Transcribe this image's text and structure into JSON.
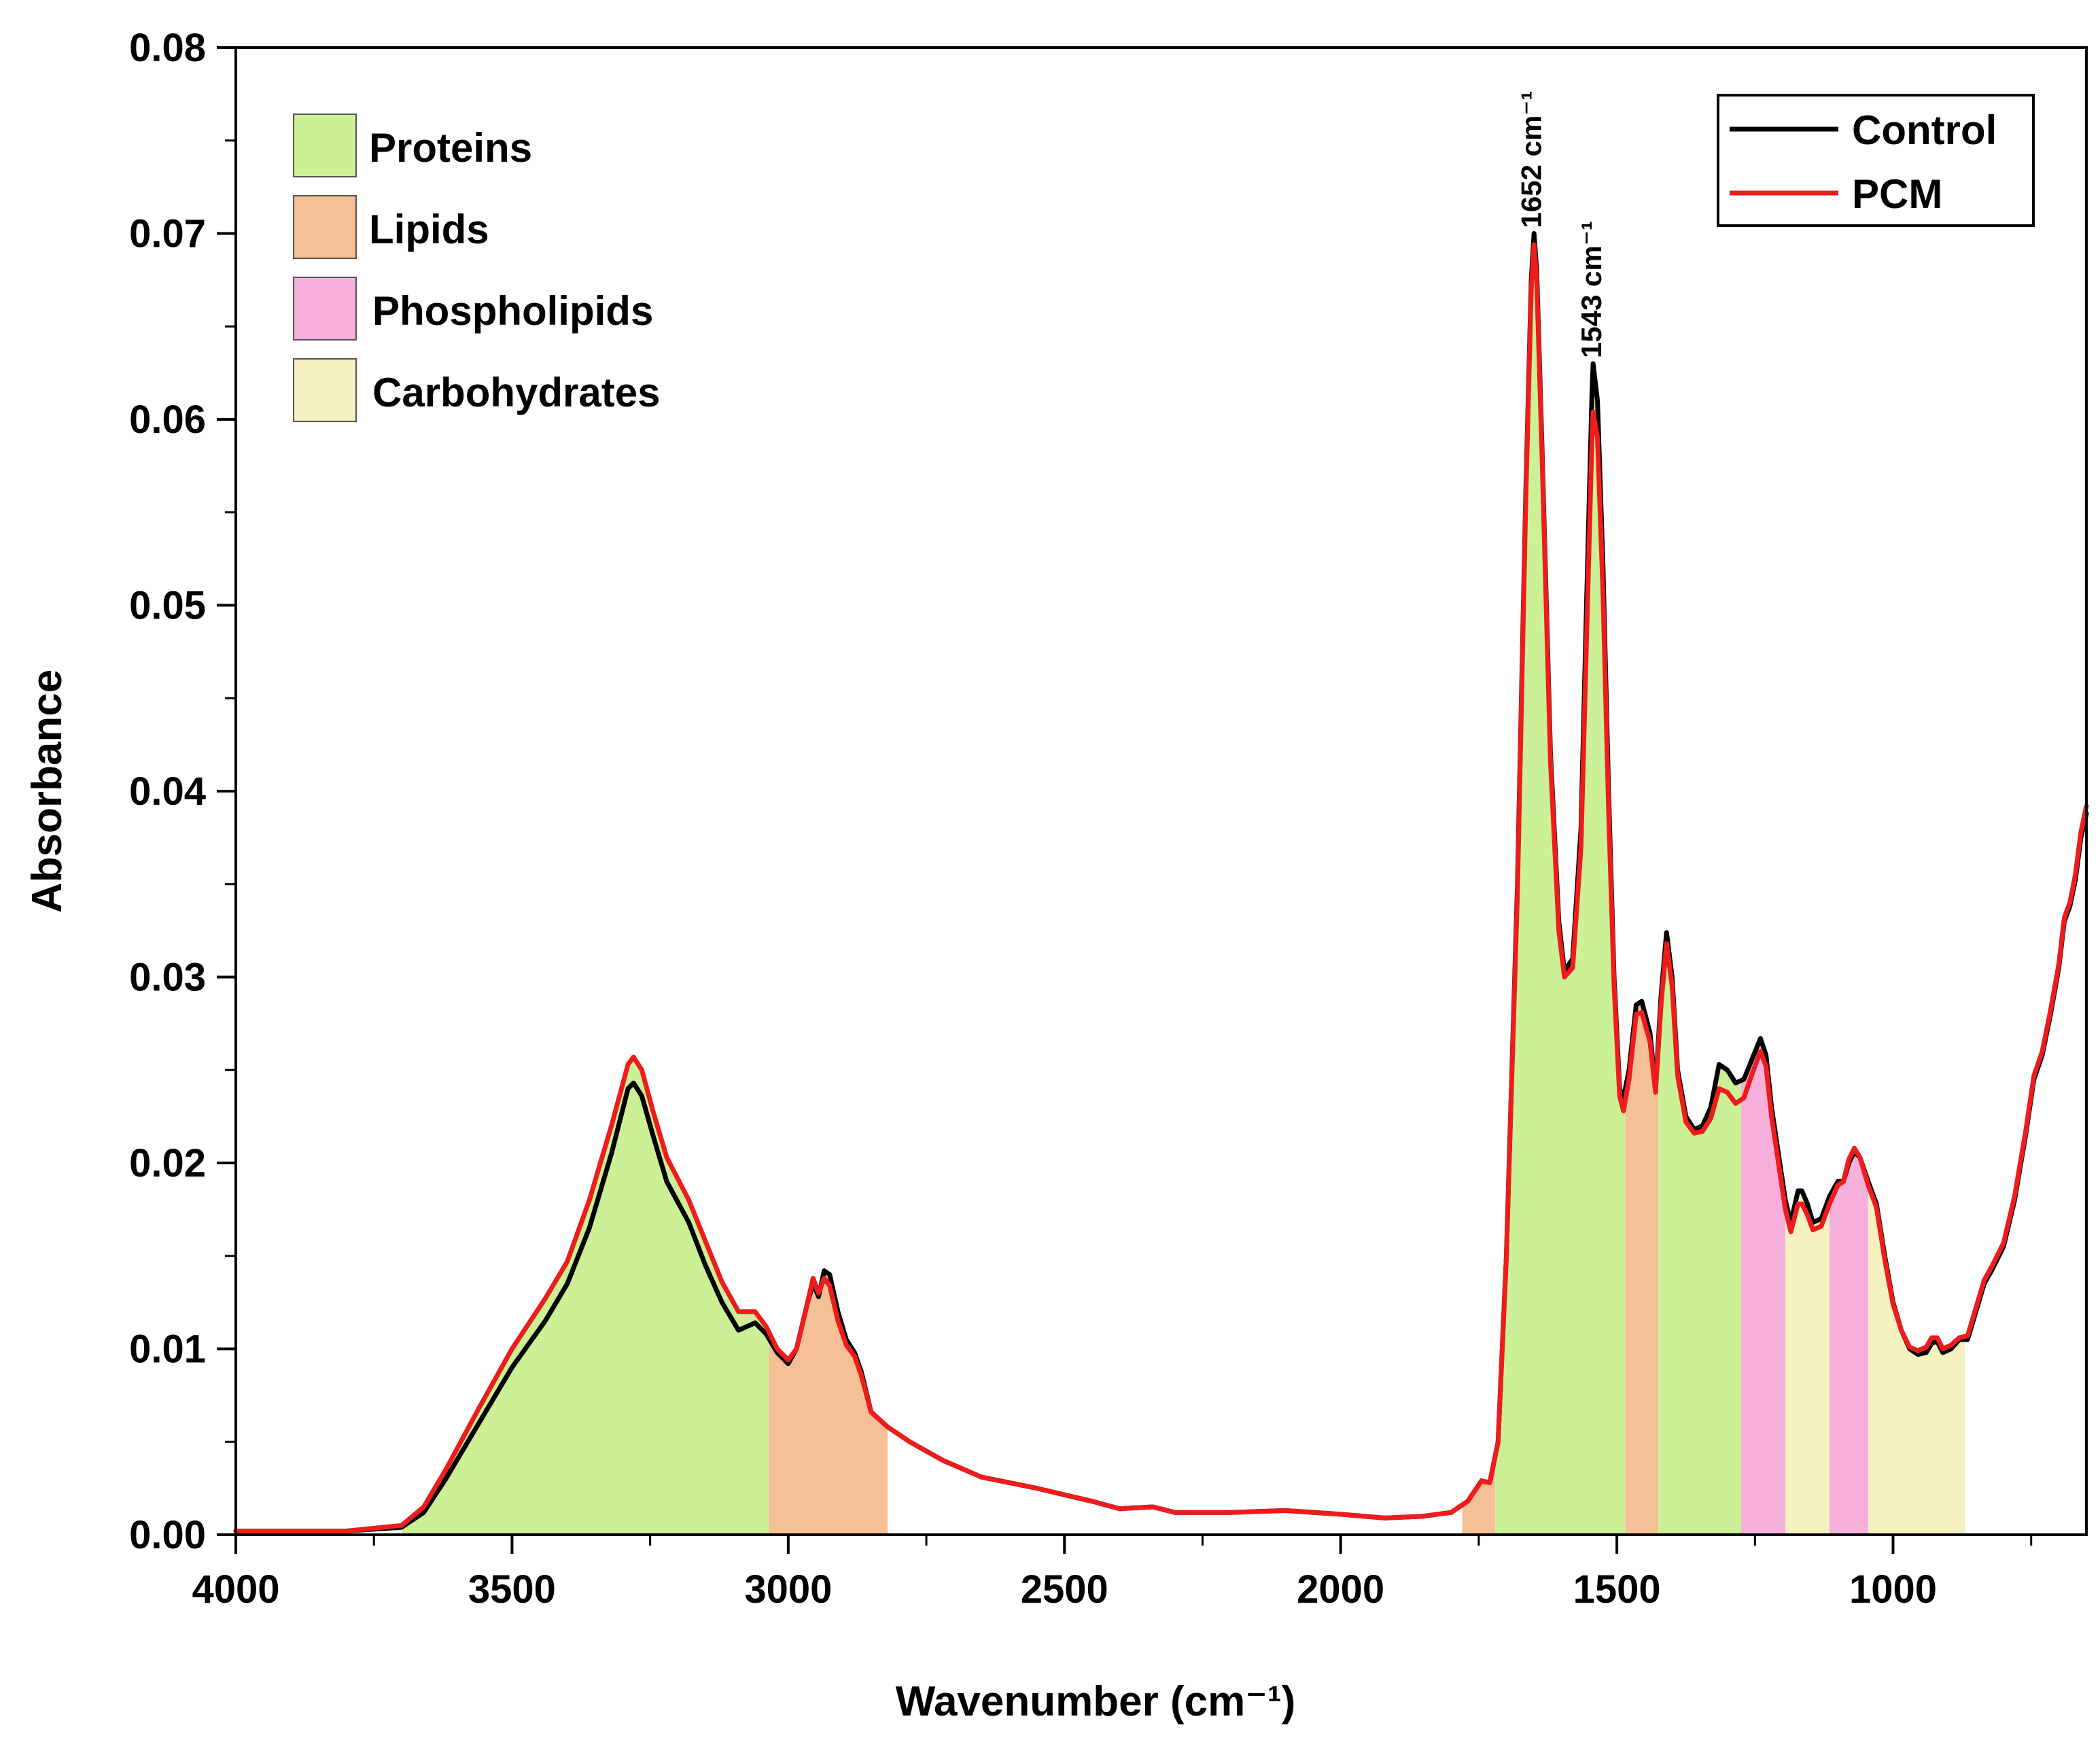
{
  "chart_data": {
    "type": "line",
    "title": "",
    "xlabel": "Wavenumber (cm⁻¹)",
    "ylabel": "Absorbance",
    "xlim": [
      4000,
      650
    ],
    "ylim": [
      0,
      0.08
    ],
    "xticks": [
      4000,
      3500,
      3000,
      2500,
      2000,
      1500,
      1000
    ],
    "xtick_labels": [
      "4000",
      "3500",
      "3000",
      "2500",
      "2000",
      "1500",
      "1000"
    ],
    "yticks": [
      0,
      0.01,
      0.02,
      0.03,
      0.04,
      0.05,
      0.06,
      0.07,
      0.08
    ],
    "ytick_labels": [
      "0.00",
      "0.01",
      "0.02",
      "0.03",
      "0.04",
      "0.05",
      "0.06",
      "0.07",
      "0.08"
    ],
    "x_inverted": true,
    "grid": false,
    "series": [
      {
        "name": "Control",
        "color": "#000000",
        "points": [
          [
            4000,
            0.0002
          ],
          [
            3800,
            0.0002
          ],
          [
            3700,
            0.0004
          ],
          [
            3660,
            0.0012
          ],
          [
            3620,
            0.003
          ],
          [
            3560,
            0.006
          ],
          [
            3500,
            0.009
          ],
          [
            3440,
            0.0115
          ],
          [
            3400,
            0.0135
          ],
          [
            3360,
            0.0165
          ],
          [
            3320,
            0.0205
          ],
          [
            3290,
            0.024
          ],
          [
            3280,
            0.0243
          ],
          [
            3265,
            0.0236
          ],
          [
            3245,
            0.0215
          ],
          [
            3220,
            0.019
          ],
          [
            3180,
            0.0168
          ],
          [
            3150,
            0.0145
          ],
          [
            3120,
            0.0125
          ],
          [
            3090,
            0.011
          ],
          [
            3060,
            0.0114
          ],
          [
            3040,
            0.0108
          ],
          [
            3020,
            0.0098
          ],
          [
            3000,
            0.0092
          ],
          [
            2985,
            0.01
          ],
          [
            2965,
            0.0125
          ],
          [
            2955,
            0.0135
          ],
          [
            2945,
            0.0128
          ],
          [
            2935,
            0.0142
          ],
          [
            2925,
            0.014
          ],
          [
            2910,
            0.012
          ],
          [
            2895,
            0.0105
          ],
          [
            2880,
            0.0098
          ],
          [
            2868,
            0.0088
          ],
          [
            2850,
            0.0066
          ],
          [
            2820,
            0.0058
          ],
          [
            2780,
            0.005
          ],
          [
            2720,
            0.004
          ],
          [
            2650,
            0.0031
          ],
          [
            2550,
            0.0025
          ],
          [
            2450,
            0.0018
          ],
          [
            2400,
            0.0014
          ],
          [
            2340,
            0.0015
          ],
          [
            2300,
            0.0012
          ],
          [
            2200,
            0.0012
          ],
          [
            2100,
            0.0013
          ],
          [
            2000,
            0.0011
          ],
          [
            1920,
            0.0009
          ],
          [
            1850,
            0.001
          ],
          [
            1800,
            0.0012
          ],
          [
            1770,
            0.0018
          ],
          [
            1745,
            0.0029
          ],
          [
            1730,
            0.0028
          ],
          [
            1715,
            0.005
          ],
          [
            1700,
            0.015
          ],
          [
            1680,
            0.035
          ],
          [
            1665,
            0.056
          ],
          [
            1655,
            0.0675
          ],
          [
            1650,
            0.07
          ],
          [
            1645,
            0.068
          ],
          [
            1635,
            0.058
          ],
          [
            1620,
            0.042
          ],
          [
            1605,
            0.033
          ],
          [
            1595,
            0.0303
          ],
          [
            1580,
            0.031
          ],
          [
            1565,
            0.038
          ],
          [
            1555,
            0.05
          ],
          [
            1545,
            0.0615
          ],
          [
            1543,
            0.063
          ],
          [
            1535,
            0.061
          ],
          [
            1525,
            0.052
          ],
          [
            1515,
            0.04
          ],
          [
            1505,
            0.03
          ],
          [
            1495,
            0.024
          ],
          [
            1488,
            0.0235
          ],
          [
            1478,
            0.025
          ],
          [
            1465,
            0.0285
          ],
          [
            1455,
            0.0287
          ],
          [
            1440,
            0.027
          ],
          [
            1430,
            0.024
          ],
          [
            1420,
            0.029
          ],
          [
            1410,
            0.0324
          ],
          [
            1400,
            0.03
          ],
          [
            1390,
            0.025
          ],
          [
            1375,
            0.0225
          ],
          [
            1360,
            0.0218
          ],
          [
            1345,
            0.022
          ],
          [
            1330,
            0.023
          ],
          [
            1315,
            0.0253
          ],
          [
            1300,
            0.025
          ],
          [
            1285,
            0.0243
          ],
          [
            1270,
            0.0245
          ],
          [
            1255,
            0.0256
          ],
          [
            1240,
            0.0267
          ],
          [
            1230,
            0.0258
          ],
          [
            1220,
            0.023
          ],
          [
            1210,
            0.021
          ],
          [
            1195,
            0.018
          ],
          [
            1185,
            0.0168
          ],
          [
            1172,
            0.0185
          ],
          [
            1165,
            0.0185
          ],
          [
            1155,
            0.0178
          ],
          [
            1145,
            0.0168
          ],
          [
            1130,
            0.017
          ],
          [
            1115,
            0.0182
          ],
          [
            1100,
            0.019
          ],
          [
            1090,
            0.019
          ],
          [
            1080,
            0.02
          ],
          [
            1070,
            0.0206
          ],
          [
            1060,
            0.0203
          ],
          [
            1045,
            0.019
          ],
          [
            1030,
            0.0178
          ],
          [
            1015,
            0.015
          ],
          [
            1000,
            0.0125
          ],
          [
            985,
            0.011
          ],
          [
            970,
            0.01
          ],
          [
            955,
            0.0097
          ],
          [
            940,
            0.0098
          ],
          [
            930,
            0.0103
          ],
          [
            920,
            0.0104
          ],
          [
            910,
            0.0098
          ],
          [
            895,
            0.01
          ],
          [
            880,
            0.0105
          ],
          [
            865,
            0.0105
          ],
          [
            850,
            0.012
          ],
          [
            835,
            0.0135
          ],
          [
            820,
            0.0143
          ],
          [
            800,
            0.0155
          ],
          [
            780,
            0.018
          ],
          [
            760,
            0.0215
          ],
          [
            745,
            0.0245
          ],
          [
            730,
            0.0258
          ],
          [
            715,
            0.028
          ],
          [
            700,
            0.0305
          ],
          [
            690,
            0.033
          ],
          [
            680,
            0.0338
          ],
          [
            670,
            0.0352
          ],
          [
            660,
            0.0375
          ],
          [
            650,
            0.0388
          ]
        ]
      },
      {
        "name": "PCM",
        "color": "#ee1c1c",
        "points": [
          [
            4000,
            0.0002
          ],
          [
            3800,
            0.0002
          ],
          [
            3700,
            0.0005
          ],
          [
            3660,
            0.0015
          ],
          [
            3620,
            0.0035
          ],
          [
            3560,
            0.0068
          ],
          [
            3500,
            0.01
          ],
          [
            3440,
            0.0127
          ],
          [
            3400,
            0.0147
          ],
          [
            3360,
            0.018
          ],
          [
            3320,
            0.022
          ],
          [
            3290,
            0.0253
          ],
          [
            3280,
            0.0257
          ],
          [
            3265,
            0.025
          ],
          [
            3245,
            0.0228
          ],
          [
            3220,
            0.0203
          ],
          [
            3180,
            0.018
          ],
          [
            3150,
            0.0158
          ],
          [
            3120,
            0.0136
          ],
          [
            3090,
            0.012
          ],
          [
            3060,
            0.012
          ],
          [
            3040,
            0.0112
          ],
          [
            3020,
            0.01
          ],
          [
            3000,
            0.0094
          ],
          [
            2985,
            0.01
          ],
          [
            2965,
            0.0125
          ],
          [
            2955,
            0.0138
          ],
          [
            2945,
            0.013
          ],
          [
            2935,
            0.0138
          ],
          [
            2925,
            0.0134
          ],
          [
            2910,
            0.0115
          ],
          [
            2895,
            0.0102
          ],
          [
            2880,
            0.0096
          ],
          [
            2868,
            0.0086
          ],
          [
            2850,
            0.0066
          ],
          [
            2820,
            0.0058
          ],
          [
            2780,
            0.005
          ],
          [
            2720,
            0.004
          ],
          [
            2650,
            0.0031
          ],
          [
            2550,
            0.0025
          ],
          [
            2450,
            0.0018
          ],
          [
            2400,
            0.0014
          ],
          [
            2340,
            0.0015
          ],
          [
            2300,
            0.0012
          ],
          [
            2200,
            0.0012
          ],
          [
            2100,
            0.0013
          ],
          [
            2000,
            0.0011
          ],
          [
            1920,
            0.0009
          ],
          [
            1850,
            0.001
          ],
          [
            1800,
            0.0012
          ],
          [
            1770,
            0.0018
          ],
          [
            1745,
            0.0029
          ],
          [
            1730,
            0.0028
          ],
          [
            1715,
            0.005
          ],
          [
            1700,
            0.015
          ],
          [
            1680,
            0.0345
          ],
          [
            1665,
            0.0555
          ],
          [
            1655,
            0.067
          ],
          [
            1650,
            0.0694
          ],
          [
            1645,
            0.0675
          ],
          [
            1635,
            0.0575
          ],
          [
            1620,
            0.0415
          ],
          [
            1605,
            0.0325
          ],
          [
            1595,
            0.03
          ],
          [
            1580,
            0.0305
          ],
          [
            1565,
            0.037
          ],
          [
            1555,
            0.048
          ],
          [
            1545,
            0.059
          ],
          [
            1543,
            0.0604
          ],
          [
            1535,
            0.059
          ],
          [
            1525,
            0.0505
          ],
          [
            1515,
            0.039
          ],
          [
            1505,
            0.0295
          ],
          [
            1495,
            0.0236
          ],
          [
            1488,
            0.0228
          ],
          [
            1478,
            0.0245
          ],
          [
            1465,
            0.028
          ],
          [
            1455,
            0.0281
          ],
          [
            1440,
            0.0265
          ],
          [
            1430,
            0.0238
          ],
          [
            1420,
            0.0285
          ],
          [
            1410,
            0.0318
          ],
          [
            1400,
            0.0295
          ],
          [
            1390,
            0.0247
          ],
          [
            1375,
            0.0222
          ],
          [
            1360,
            0.0216
          ],
          [
            1345,
            0.0217
          ],
          [
            1330,
            0.0224
          ],
          [
            1315,
            0.024
          ],
          [
            1300,
            0.0238
          ],
          [
            1285,
            0.0232
          ],
          [
            1270,
            0.0235
          ],
          [
            1255,
            0.0248
          ],
          [
            1240,
            0.026
          ],
          [
            1230,
            0.0252
          ],
          [
            1220,
            0.0225
          ],
          [
            1210,
            0.0205
          ],
          [
            1195,
            0.0175
          ],
          [
            1185,
            0.0163
          ],
          [
            1172,
            0.0178
          ],
          [
            1165,
            0.0178
          ],
          [
            1155,
            0.0172
          ],
          [
            1145,
            0.0164
          ],
          [
            1130,
            0.0166
          ],
          [
            1115,
            0.0178
          ],
          [
            1100,
            0.0188
          ],
          [
            1090,
            0.019
          ],
          [
            1080,
            0.0202
          ],
          [
            1070,
            0.0208
          ],
          [
            1060,
            0.0203
          ],
          [
            1045,
            0.0188
          ],
          [
            1030,
            0.0176
          ],
          [
            1015,
            0.0148
          ],
          [
            1000,
            0.0124
          ],
          [
            985,
            0.011
          ],
          [
            970,
            0.0101
          ],
          [
            955,
            0.0099
          ],
          [
            940,
            0.0101
          ],
          [
            930,
            0.0106
          ],
          [
            920,
            0.0106
          ],
          [
            910,
            0.01
          ],
          [
            895,
            0.0102
          ],
          [
            880,
            0.0106
          ],
          [
            865,
            0.0107
          ],
          [
            850,
            0.0122
          ],
          [
            835,
            0.0137
          ],
          [
            820,
            0.0145
          ],
          [
            800,
            0.0157
          ],
          [
            780,
            0.0182
          ],
          [
            760,
            0.0217
          ],
          [
            745,
            0.0247
          ],
          [
            730,
            0.026
          ],
          [
            715,
            0.0282
          ],
          [
            700,
            0.0307
          ],
          [
            690,
            0.0332
          ],
          [
            680,
            0.034
          ],
          [
            670,
            0.0355
          ],
          [
            660,
            0.0378
          ],
          [
            650,
            0.0392
          ]
        ]
      }
    ],
    "regions": [
      {
        "category": "Proteins",
        "from": 3700,
        "to": 3035
      },
      {
        "category": "Lipids",
        "from": 3035,
        "to": 2820
      },
      {
        "category": "Lipids",
        "from": 1780,
        "to": 1720
      },
      {
        "category": "Proteins",
        "from": 1720,
        "to": 1485
      },
      {
        "category": "Lipids",
        "from": 1485,
        "to": 1425
      },
      {
        "category": "Proteins",
        "from": 1425,
        "to": 1275
      },
      {
        "category": "Phospholipids",
        "from": 1275,
        "to": 1195
      },
      {
        "category": "Carbohydrates",
        "from": 1195,
        "to": 1115
      },
      {
        "category": "Phospholipids",
        "from": 1115,
        "to": 1045
      },
      {
        "category": "Carbohydrates",
        "from": 1045,
        "to": 870
      }
    ],
    "region_legend": [
      {
        "label": "Proteins",
        "color": "#ccf095"
      },
      {
        "label": "Lipids",
        "color": "#f5c096"
      },
      {
        "label": "Phospholipids",
        "color": "#f7b0db"
      },
      {
        "label": "Carbohydrates",
        "color": "#f6f1c0"
      }
    ],
    "annotations": [
      {
        "text": "1652 cm⁻¹",
        "x": 1652,
        "y": 0.07
      },
      {
        "text": "1543 cm⁻¹",
        "x": 1543,
        "y": 0.063
      }
    ],
    "series_legend_position": "top-right",
    "region_legend_position": "top-left"
  }
}
